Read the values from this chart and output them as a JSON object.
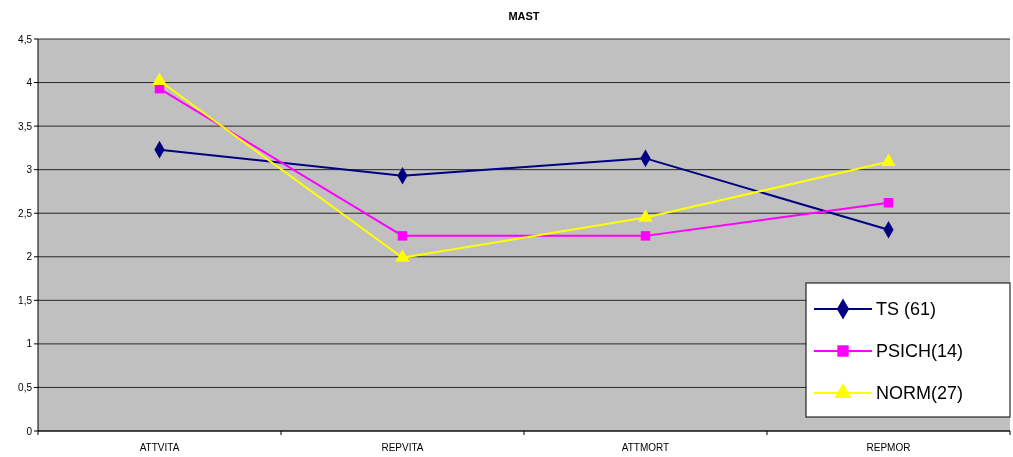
{
  "chart_data": {
    "type": "line",
    "title": "MAST",
    "categories": [
      "ATTVITA",
      "REPVITA",
      "ATTMORT",
      "REPMOR"
    ],
    "series": [
      {
        "name": "TS (61)",
        "color": "#000080",
        "marker": "diamond",
        "values": [
          3.23,
          2.93,
          3.13,
          2.31
        ]
      },
      {
        "name": "PSICH(14)",
        "color": "#ff00ff",
        "marker": "square",
        "values": [
          3.93,
          2.24,
          2.24,
          2.62
        ]
      },
      {
        "name": "NORM(27)",
        "color": "#ffff00",
        "marker": "triangle",
        "values": [
          4.02,
          1.99,
          2.45,
          3.09
        ]
      }
    ],
    "ylim": [
      0,
      4.5
    ],
    "yticks": [
      0,
      {
        "value": 0.5,
        "label": "0,5"
      },
      1,
      {
        "value": 1.5,
        "label": "1,5"
      },
      2,
      {
        "value": 2.5,
        "label": "2,5"
      },
      3,
      {
        "value": 3.5,
        "label": "3,5"
      },
      4,
      {
        "value": 4.5,
        "label": "4,5"
      }
    ],
    "grid": "y",
    "legend": "bottom right"
  }
}
